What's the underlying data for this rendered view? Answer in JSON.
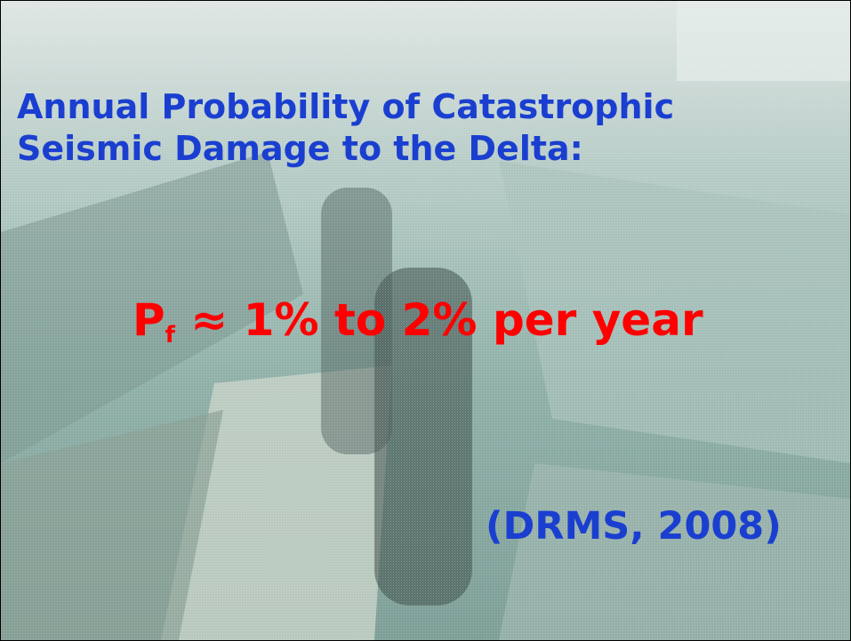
{
  "title": {
    "lines": [
      "Annual Probability of Catastrophic",
      "Seismic Damage to the Delta:"
    ]
  },
  "formula": {
    "symbol": "P",
    "subscript": "f",
    "text": "≈ 1% to 2% per year"
  },
  "citation": "(DRMS, 2008)"
}
